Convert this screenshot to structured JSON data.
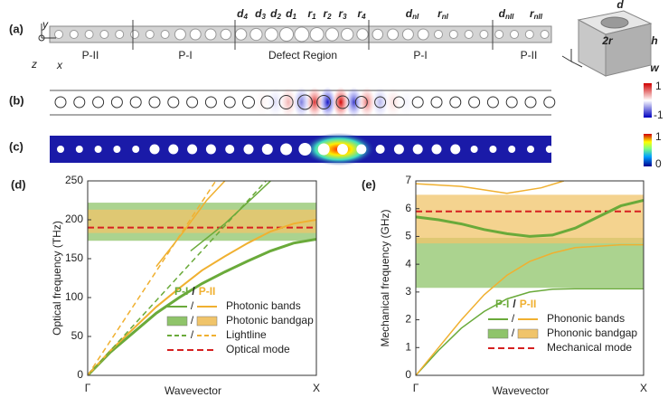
{
  "diagram": {
    "panels": [
      "(a)",
      "(b)",
      "(c)"
    ],
    "regions": [
      "P-II",
      "P-I",
      "Defect Region",
      "P-I",
      "P-II"
    ],
    "params": [
      {
        "base": "d",
        "sub": "4"
      },
      {
        "base": "d",
        "sub": "3"
      },
      {
        "base": "d",
        "sub": "2"
      },
      {
        "base": "d",
        "sub": "1"
      },
      {
        "base": "r",
        "sub": "1"
      },
      {
        "base": "r",
        "sub": "2"
      },
      {
        "base": "r",
        "sub": "3"
      },
      {
        "base": "r",
        "sub": "4"
      },
      {
        "base": "d",
        "sub": "nI"
      },
      {
        "base": "r",
        "sub": "nI"
      },
      {
        "base": "d",
        "sub": "nII"
      },
      {
        "base": "r",
        "sub": "nII"
      }
    ],
    "cell": [
      "d",
      "2r",
      "h",
      "w"
    ],
    "axes": [
      "y",
      "z",
      "x"
    ],
    "colorbar_b": [
      "1",
      "-1"
    ],
    "colorbar_c": [
      "1",
      "0"
    ]
  },
  "chart_data": [
    {
      "type": "line",
      "label": "(d)",
      "ylabel": "Optical frequency (THz)",
      "xlabel": "Wavevector",
      "xlim": [
        0,
        1
      ],
      "xticks": [
        {
          "value": 0,
          "label": "Γ"
        },
        {
          "value": 1,
          "label": "X"
        }
      ],
      "ylim": [
        0,
        250
      ],
      "yticks": [
        0,
        50,
        100,
        150,
        200,
        250
      ],
      "bands": [
        {
          "color": "#8fc46a",
          "values": [
            173,
            222
          ]
        },
        {
          "color": "#f0c46a",
          "values": [
            183,
            213
          ]
        }
      ],
      "mode": {
        "color": "#d62020",
        "value": 190
      },
      "series": [
        {
          "color": "#6aaa3a",
          "width": 3,
          "dash": false,
          "x": [
            0,
            0.1,
            0.2,
            0.3,
            0.4,
            0.5,
            0.6,
            0.7,
            0.8,
            0.9,
            1
          ],
          "values": [
            0,
            30,
            55,
            80,
            100,
            118,
            133,
            147,
            160,
            170,
            175
          ]
        },
        {
          "color": "#f0b030",
          "width": 2,
          "dash": false,
          "x": [
            0,
            0.1,
            0.2,
            0.3,
            0.4,
            0.5,
            0.6,
            0.7,
            0.8,
            0.9,
            1
          ],
          "values": [
            0,
            32,
            60,
            88,
            112,
            135,
            153,
            170,
            185,
            195,
            200
          ]
        },
        {
          "color": "#6aaa3a",
          "width": 1.5,
          "dash": true,
          "x": [
            0,
            0.78
          ],
          "values": [
            0,
            250
          ]
        },
        {
          "color": "#f0b030",
          "width": 1.5,
          "dash": true,
          "x": [
            0,
            0.56
          ],
          "values": [
            0,
            250
          ]
        },
        {
          "color": "#6aaa3a",
          "width": 1.5,
          "dash": false,
          "x": [
            0.45,
            0.6,
            0.72,
            0.8
          ],
          "values": [
            160,
            195,
            228,
            250
          ]
        },
        {
          "color": "#f0b030",
          "width": 1.5,
          "dash": false,
          "x": [
            0.3,
            0.42,
            0.52,
            0.6
          ],
          "values": [
            140,
            185,
            225,
            250
          ]
        }
      ],
      "legend": {
        "groups": [
          "P-I",
          "/",
          "P-II"
        ],
        "rows": [
          "Photonic bands",
          "Photonic bandgap",
          "Lightline",
          "Optical mode"
        ]
      }
    },
    {
      "type": "line",
      "label": "(e)",
      "ylabel": "Mechanical frequency (GHz)",
      "xlabel": "Wavevector",
      "xlim": [
        0,
        1
      ],
      "xticks": [
        {
          "value": 0,
          "label": "Γ"
        },
        {
          "value": 1,
          "label": "X"
        }
      ],
      "ylim": [
        0,
        7
      ],
      "yticks": [
        0,
        1,
        2,
        3,
        4,
        5,
        6,
        7
      ],
      "bands": [
        {
          "color": "#8fc46a",
          "values": [
            3.15,
            4.95
          ]
        },
        {
          "color": "#f0c46a",
          "values": [
            4.75,
            6.5
          ]
        }
      ],
      "mode": {
        "color": "#d62020",
        "value": 5.9
      },
      "series": [
        {
          "color": "#6aaa3a",
          "width": 1.5,
          "dash": false,
          "x": [
            0,
            0.1,
            0.2,
            0.3,
            0.4,
            0.5,
            0.6,
            0.7,
            0.8,
            0.9,
            1
          ],
          "values": [
            0,
            0.9,
            1.7,
            2.3,
            2.75,
            3.0,
            3.1,
            3.12,
            3.12,
            3.12,
            3.12
          ]
        },
        {
          "color": "#f0b030",
          "width": 1.5,
          "dash": false,
          "x": [
            0,
            0.1,
            0.2,
            0.3,
            0.4,
            0.5,
            0.6,
            0.7,
            0.8,
            0.9,
            1
          ],
          "values": [
            0,
            1.0,
            2.0,
            2.9,
            3.6,
            4.1,
            4.4,
            4.6,
            4.65,
            4.7,
            4.7
          ]
        },
        {
          "color": "#6aaa3a",
          "width": 3,
          "dash": false,
          "x": [
            0,
            0.1,
            0.2,
            0.3,
            0.4,
            0.5,
            0.6,
            0.7,
            0.8,
            0.9,
            1
          ],
          "values": [
            5.7,
            5.6,
            5.45,
            5.25,
            5.1,
            5.0,
            5.05,
            5.3,
            5.7,
            6.1,
            6.3
          ]
        },
        {
          "color": "#f0b030",
          "width": 1.5,
          "dash": false,
          "x": [
            0,
            0.2,
            0.4,
            0.55,
            0.65
          ],
          "values": [
            6.9,
            6.8,
            6.55,
            6.75,
            7
          ]
        }
      ],
      "legend": {
        "groups": [
          "P-I",
          "/",
          "P-II"
        ],
        "rows": [
          "Phononic bands",
          "Phononic bandgap",
          "Mechanical mode"
        ]
      }
    }
  ]
}
